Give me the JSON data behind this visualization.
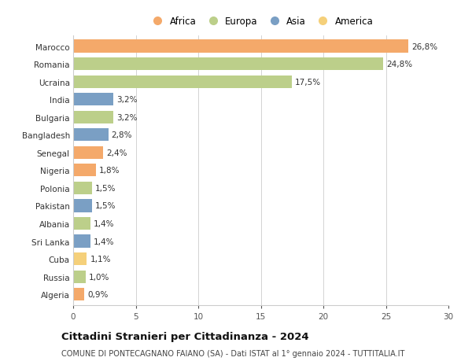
{
  "countries": [
    "Marocco",
    "Romania",
    "Ucraina",
    "India",
    "Bulgaria",
    "Bangladesh",
    "Senegal",
    "Nigeria",
    "Polonia",
    "Pakistan",
    "Albania",
    "Sri Lanka",
    "Cuba",
    "Russia",
    "Algeria"
  ],
  "values": [
    26.8,
    24.8,
    17.5,
    3.2,
    3.2,
    2.8,
    2.4,
    1.8,
    1.5,
    1.5,
    1.4,
    1.4,
    1.1,
    1.0,
    0.9
  ],
  "labels": [
    "26,8%",
    "24,8%",
    "17,5%",
    "3,2%",
    "3,2%",
    "2,8%",
    "2,4%",
    "1,8%",
    "1,5%",
    "1,5%",
    "1,4%",
    "1,4%",
    "1,1%",
    "1,0%",
    "0,9%"
  ],
  "colors": [
    "#F4A96A",
    "#BCCF8A",
    "#BCCF8A",
    "#7A9FC4",
    "#BCCF8A",
    "#7A9FC4",
    "#F4A96A",
    "#F4A96A",
    "#BCCF8A",
    "#7A9FC4",
    "#BCCF8A",
    "#7A9FC4",
    "#F5D07A",
    "#BCCF8A",
    "#F4A96A"
  ],
  "continent_colors": {
    "Africa": "#F4A96A",
    "Europa": "#BCCF8A",
    "Asia": "#7A9FC4",
    "America": "#F5D07A"
  },
  "title": "Cittadini Stranieri per Cittadinanza - 2024",
  "subtitle": "COMUNE DI PONTECAGNANO FAIANO (SA) - Dati ISTAT al 1° gennaio 2024 - TUTTITALIA.IT",
  "xlim": [
    0,
    30
  ],
  "xticks": [
    0,
    5,
    10,
    15,
    20,
    25,
    30
  ],
  "background_color": "#ffffff",
  "bar_height": 0.72,
  "title_fontsize": 9.5,
  "subtitle_fontsize": 7,
  "label_fontsize": 7.5,
  "tick_fontsize": 7.5,
  "legend_fontsize": 8.5
}
